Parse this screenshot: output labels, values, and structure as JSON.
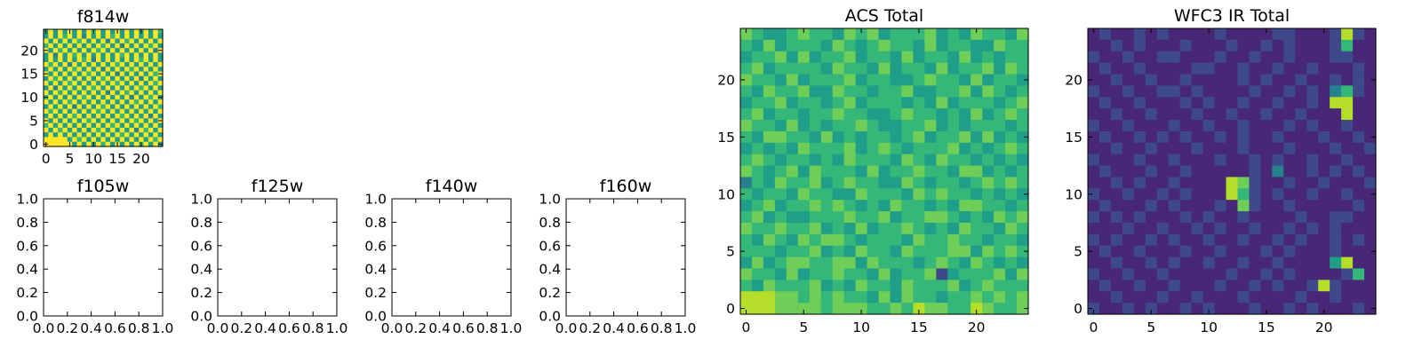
{
  "figure": {
    "colormap": [
      "#440154",
      "#482777",
      "#3e4989",
      "#31688e",
      "#26828e",
      "#1f9e89",
      "#35b779",
      "#6ece58",
      "#b5de2b",
      "#fde725"
    ]
  },
  "chart_data": [
    {
      "type": "heatmap",
      "title": "f814w",
      "xticks": [
        "0",
        "5",
        "10",
        "15",
        "20"
      ],
      "yticks": [
        "0",
        "5",
        "10",
        "15",
        "20"
      ],
      "xlim": [
        -0.5,
        24.5
      ],
      "ylim": [
        -0.5,
        24.5
      ],
      "grid_size": 25,
      "value_range": [
        0,
        1
      ],
      "data": [
        "5A6A6A5A5A7A6A5B6A6A5A6A7",
        "6A5A7B6A4A6A5A7A6A5B6A6A5",
        "A6A5A6B7A5A6A4A6A7A6A5A6A",
        "7A6A5A6A6B5A7A6A4A6A5A7A6",
        "A5A7A6A5A6A7B5A6A6A5A6A4A",
        "6A4A6A7A5A6A5A6B7A5A6A6A5",
        "5A6A5A6A7A4A6A5A6A6B7A5A6",
        "A7A6A4A5A6A6A5A7A6A5A6B5A",
        "6A5A6A7A6A5A4A6A5A7A6A6A5",
        "B6A5A6A5A7A6A6A4A6A5A6A7A",
        "5A7A6A5A6A5A7A6A5A6A4A6A6",
        "A6A5A7A6B6A5A6A7A6A5A5A7A",
        "6A4A6A5A6A7A6A5A6A5A7A6A5",
        "A6A7A5A6A5A6A4A6A7A6A5A6A",
        "7A5A6A6A7A5A6A6A5A4A6A7A5",
        "A6A5A7A5A6A6B5A6A6A7A5A6A",
        "5A6A6A4A6A5A7A6A5A6A6A5A7",
        "A7A5A6A6A5A7A6A5A6B5A6A6A",
        "6A6A5A7A6A6A5A6A7A5A6A4A6",
        "A5A6A6A5A7A5A6A6A5A7A6A5A",
        "7A6A5A6A6A5A6A7A6A5A6A6A5",
        "A6A7A6A5A6A7A5A6A6A4A7A6A",
        "6A5A6A6A5A6A6A5A7A6A5A6A6",
        "AAAAA6A7A6A5A6A6A5A6A5A7A",
        "AAAAAA6A5A6A7A6A5A6A7A5A6"
      ]
    },
    {
      "type": "line",
      "title": "f105w",
      "xticks": [
        "0.0",
        "0.2",
        "0.4",
        "0.6",
        "0.8",
        "1.0"
      ],
      "yticks": [
        "0.0",
        "0.2",
        "0.4",
        "0.6",
        "0.8",
        "1.0"
      ],
      "xlim": [
        0,
        1
      ],
      "ylim": [
        0,
        1
      ],
      "series": []
    },
    {
      "type": "line",
      "title": "f125w",
      "xticks": [
        "0.0",
        "0.2",
        "0.4",
        "0.6",
        "0.8",
        "1.0"
      ],
      "yticks": [
        "0.0",
        "0.2",
        "0.4",
        "0.6",
        "0.8",
        "1.0"
      ],
      "xlim": [
        0,
        1
      ],
      "ylim": [
        0,
        1
      ],
      "series": []
    },
    {
      "type": "line",
      "title": "f140w",
      "xticks": [
        "0.0",
        "0.2",
        "0.4",
        "0.6",
        "0.8",
        "1.0"
      ],
      "yticks": [
        "0.0",
        "0.2",
        "0.4",
        "0.6",
        "0.8",
        "1.0"
      ],
      "xlim": [
        0,
        1
      ],
      "ylim": [
        0,
        1
      ],
      "series": []
    },
    {
      "type": "line",
      "title": "f160w",
      "xticks": [
        "0.0",
        "0.2",
        "0.4",
        "0.6",
        "0.8",
        "1.0"
      ],
      "yticks": [
        "0.0",
        "0.2",
        "0.4",
        "0.6",
        "0.8",
        "1.0"
      ],
      "xlim": [
        0,
        1
      ],
      "ylim": [
        0,
        1
      ],
      "series": []
    },
    {
      "type": "heatmap",
      "title": "ACS Total",
      "xticks": [
        "0",
        "5",
        "10",
        "15",
        "20"
      ],
      "yticks": [
        "0",
        "5",
        "10",
        "15",
        "20"
      ],
      "xlim": [
        -0.5,
        24.5
      ],
      "ylim": [
        -0.5,
        24.5
      ],
      "grid_size": 25,
      "value_range": [
        0,
        1
      ],
      "data": [
        "8765787768786777867687768",
        "7686777587678776867756877",
        "6778686778677686776867677",
        "7867777687768677586778687",
        "8776867778677667877686776",
        "7687786587767786677868767",
        "6778677678677767686777678",
        "7867767787766787767686787",
        "8776867677876577867677767",
        "7688776867677678677868676",
        "6767687778678767778676787",
        "7876776768777687687767676",
        "8767868777686778776886767",
        "4768778678775687677678787",
        "7677687766877768787767676",
        "6786778787676877676887767",
        "7867667778778677887676878",
        "8778778676867787676877687",
        "7687687887677768778776776",
        "7776778676877687778868787",
        "6867887788687776787587676",
        "8776867787768677825777868",
        "7687778676877687778678777",
        "9998878787768687767787878",
        "9998888788877879887798778"
      ]
    },
    {
      "type": "heatmap",
      "title": "WFC3 IR Total",
      "xticks": [
        "0",
        "5",
        "10",
        "15",
        "20"
      ],
      "yticks": [
        "0",
        "5",
        "10",
        "15",
        "20"
      ],
      "xlim": [
        -0.5,
        24.5
      ],
      "ylim": [
        -0.5,
        24.5
      ],
      "grid_size": 25,
      "value_range": [
        0,
        1
      ],
      "data": [
        "1211212111121111221112921",
        "1121211121112112121112711",
        "2112112211121121121112211",
        "1211211112211211211211121",
        "1121121121111212112112121",
        "2112112212111121121214721",
        "1211211121211211211219911",
        "1121121112112112112111911",
        "2112111211211211121211211",
        "1211212121121211211121121",
        "1121121112111211121112112",
        "2111211211121121211211211",
        "1211121121111121411212121",
        "1121211211119821121121112",
        "2112112121119721211211211",
        "1211121211121821121111121",
        "2121211121211211112112211",
        "1112112112121121121212111",
        "2121121211211211212112121",
        "1211211121121112121112111",
        "1121121211211211211115911",
        "2112112111112112121111271",
        "1211211211121121211292111",
        "1121112112111211112112111",
        "2112121121211121121211121"
      ]
    }
  ]
}
